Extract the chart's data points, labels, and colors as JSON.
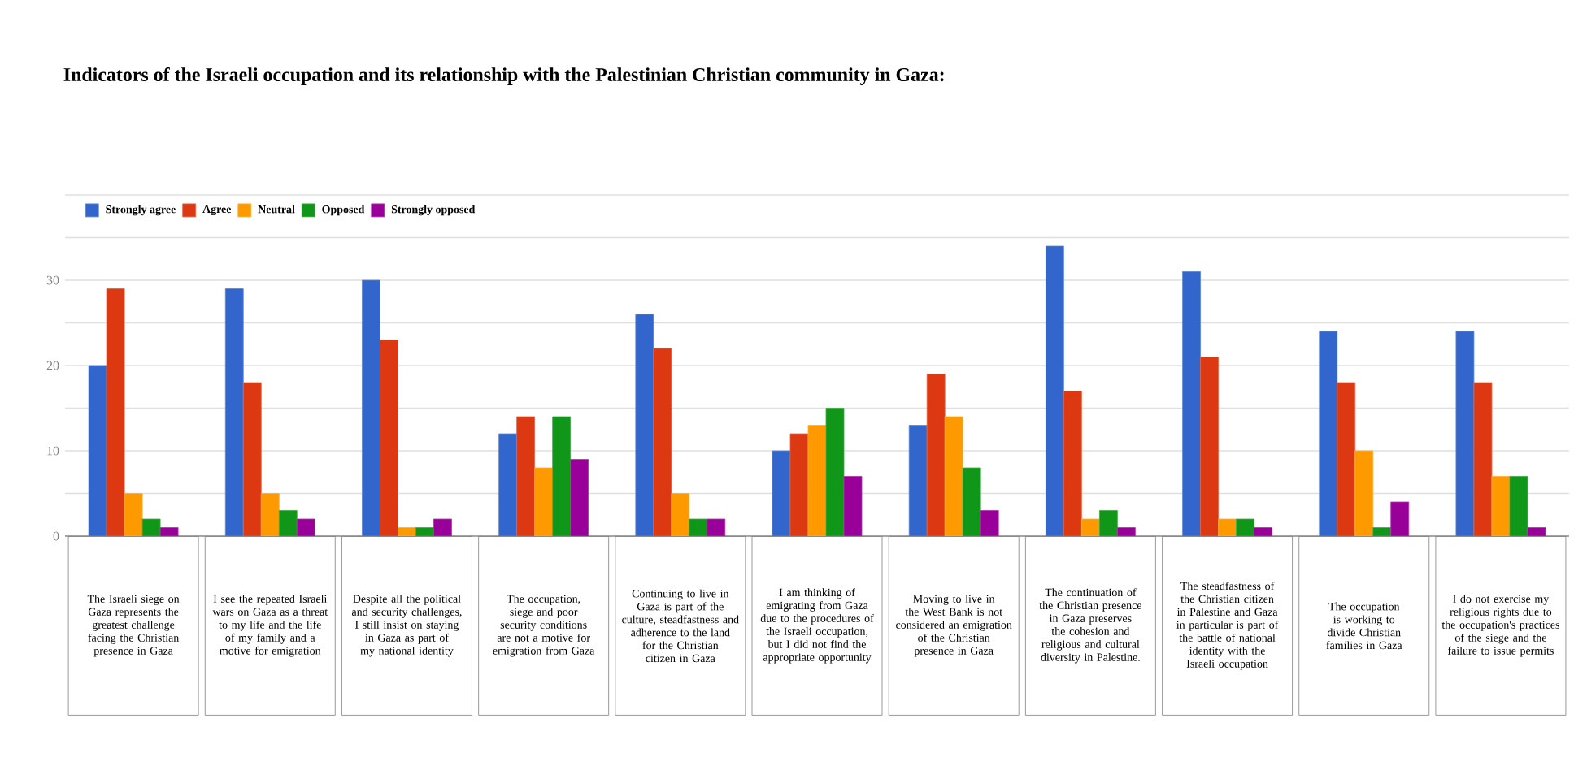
{
  "chart_data": {
    "type": "bar",
    "title": "Indicators of the Israeli occupation and its relationship with the Palestinian Christian community in Gaza:",
    "categories": [
      "The Israeli siege on Gaza represents the greatest challenge facing the Christian presence in Gaza",
      "I see the repeated Israeli wars on Gaza as a threat to my life and the life of my family and a motive for emigration",
      "Despite all the political and security challenges, I still insist on staying in Gaza as part of my national identity",
      "The occupation, siege and poor security conditions are not a motive for emigration from Gaza",
      "Continuing to live in Gaza is part of the culture, steadfastness and adherence to the land for the Christian citizen in Gaza",
      "I am thinking of emigrating from Gaza due to the procedures of the Israeli occupation, but I did not find the appropriate opportunity",
      "Moving to live in the West Bank is not considered an emigration of the Christian presence in Gaza",
      "The continuation of the Christian presence in Gaza preserves the cohesion and religious and cultural diversity in Palestine.",
      "The steadfastness of the Christian citizen in Palestine and Gaza in particular is part of the battle of national identity with the Israeli occupation",
      "The occupation is working to divide Christian families in Gaza",
      "I do not exercise my religious rights due to the occupation's practices of the siege and the failure to issue permits"
    ],
    "series": [
      {
        "name": "Strongly agree",
        "color": "#3366cc",
        "values": [
          20,
          29,
          30,
          12,
          26,
          10,
          13,
          34,
          31,
          24,
          24
        ]
      },
      {
        "name": "Agree",
        "color": "#dc3912",
        "values": [
          29,
          18,
          23,
          14,
          22,
          12,
          19,
          17,
          21,
          18,
          18
        ]
      },
      {
        "name": "Neutral",
        "color": "#ff9900",
        "values": [
          5,
          5,
          1,
          8,
          5,
          13,
          14,
          2,
          2,
          10,
          7
        ]
      },
      {
        "name": "Opposed",
        "color": "#109618",
        "values": [
          2,
          3,
          1,
          14,
          2,
          15,
          8,
          3,
          2,
          1,
          7
        ]
      },
      {
        "name": "Strongly opposed",
        "color": "#990099",
        "values": [
          1,
          2,
          2,
          9,
          2,
          7,
          3,
          1,
          1,
          4,
          1
        ]
      }
    ],
    "ylim": [
      0,
      40
    ],
    "yticks": [
      0,
      {
        "value": 5,
        "label": null
      },
      10,
      {
        "value": 15,
        "label": null
      },
      20,
      {
        "value": 25,
        "label": null
      },
      30,
      {
        "value": 35,
        "label": null
      },
      {
        "value": 40,
        "label": null
      }
    ],
    "grid": "y",
    "legend": "top left"
  }
}
